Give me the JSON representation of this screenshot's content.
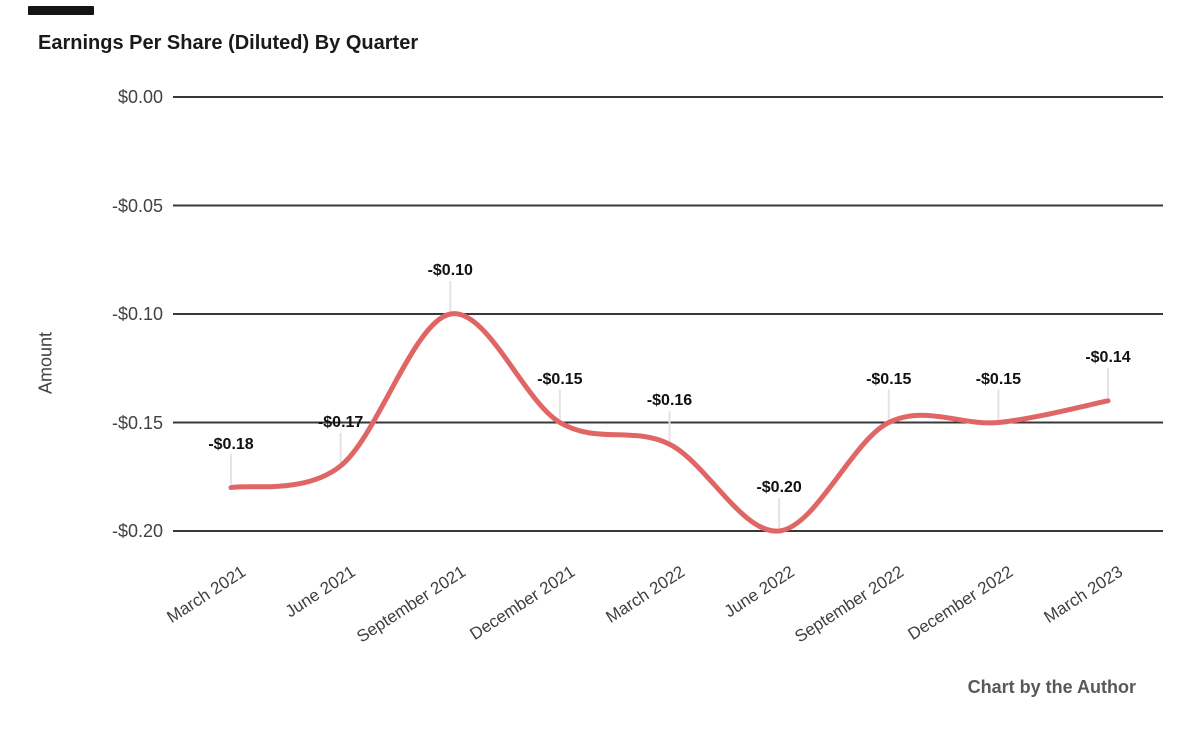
{
  "title": "Earnings Per Share (Diluted) By Quarter",
  "footer": "Chart by the Author",
  "colors": {
    "series": "#e06666",
    "gridline": "#383838",
    "callout": "#e3e3e3",
    "background": "#ffffff",
    "artifact": "#141414"
  },
  "chart_data": {
    "type": "line",
    "smooth": true,
    "title": "Earnings Per Share (Diluted) By Quarter",
    "xlabel": "",
    "ylabel": "Amount",
    "categories": [
      "March 2021",
      "June 2021",
      "September 2021",
      "December 2021",
      "March 2022",
      "June 2022",
      "September 2022",
      "December 2022",
      "March 2023"
    ],
    "series": [
      {
        "name": "Amount",
        "values": [
          -0.18,
          -0.17,
          -0.1,
          -0.15,
          -0.16,
          -0.2,
          -0.15,
          -0.15,
          -0.14
        ]
      }
    ],
    "data_labels": [
      "-$0.18",
      "-$0.17",
      "-$0.10",
      "-$0.15",
      "-$0.16",
      "-$0.20",
      "-$0.15",
      "-$0.15",
      "-$0.14"
    ],
    "y_ticks": [
      {
        "value": 0.0,
        "label": "$0.00"
      },
      {
        "value": -0.05,
        "label": "-$0.05"
      },
      {
        "value": -0.1,
        "label": "-$0.10"
      },
      {
        "value": -0.15,
        "label": "-$0.15"
      },
      {
        "value": -0.2,
        "label": "-$0.20"
      }
    ],
    "ylim": [
      -0.2,
      0.0
    ],
    "grid": true,
    "legend_position": "none",
    "line_color": "#e06666",
    "attribution": "Chart by the Author"
  }
}
